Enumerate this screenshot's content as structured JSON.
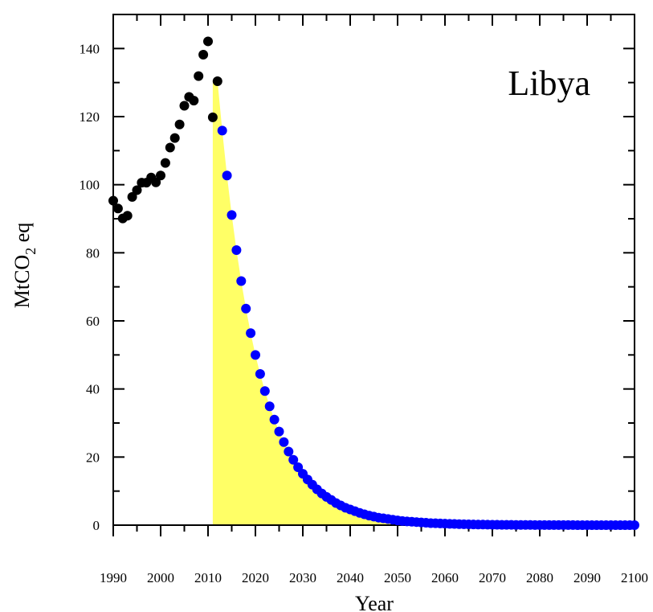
{
  "chart_data": {
    "type": "scatter",
    "annotation": "Libya",
    "xlabel": "Year",
    "ylabel_main": "MtCO",
    "ylabel_sub": "2",
    "ylabel_suffix": " eq",
    "xlim": [
      1990,
      2100
    ],
    "ylim": [
      0,
      150
    ],
    "x_ticks": [
      1990,
      2000,
      2010,
      2020,
      2030,
      2040,
      2050,
      2060,
      2070,
      2080,
      2090,
      2100
    ],
    "y_ticks": [
      0,
      20,
      40,
      60,
      80,
      100,
      120,
      140
    ],
    "grid": false,
    "colors": {
      "historical": "#000000",
      "projection": "#0000ff",
      "fill": "#ffff66"
    },
    "series": [
      {
        "x": [
          1990,
          1991,
          1992,
          1993,
          1994,
          1995,
          1996,
          1997,
          1998,
          1999,
          2000,
          2001,
          2002,
          2003,
          2004,
          2005,
          2006,
          2007,
          2008,
          2009,
          2010,
          2011,
          2012
        ],
        "y": [
          95.3,
          93.0,
          90.1,
          90.9,
          96.4,
          98.4,
          100.6,
          100.6,
          102.1,
          100.7,
          102.7,
          106.4,
          110.9,
          113.7,
          117.7,
          123.2,
          125.8,
          124.7,
          131.9,
          138.2,
          142.1,
          119.8,
          130.4
        ]
      },
      {
        "x": [
          2013,
          2014,
          2015,
          2016,
          2017,
          2018,
          2019,
          2020,
          2021,
          2022,
          2023,
          2024,
          2025,
          2026,
          2027,
          2028,
          2029,
          2030,
          2031,
          2032,
          2033,
          2034,
          2035,
          2036,
          2037,
          2038,
          2039,
          2040,
          2041,
          2042,
          2043,
          2044,
          2045,
          2046,
          2047,
          2048,
          2049,
          2050,
          2051,
          2052,
          2053,
          2054,
          2055,
          2056,
          2057,
          2058,
          2059,
          2060,
          2061,
          2062,
          2063,
          2064,
          2065,
          2066,
          2067,
          2068,
          2069,
          2070,
          2071,
          2072,
          2073,
          2074,
          2075,
          2076,
          2077,
          2078,
          2079,
          2080,
          2081,
          2082,
          2083,
          2084,
          2085,
          2086,
          2087,
          2088,
          2089,
          2090,
          2091,
          2092,
          2093,
          2094,
          2095,
          2096,
          2097,
          2098,
          2099,
          2100
        ],
        "y": [
          115.9,
          102.7,
          91.1,
          80.8,
          71.7,
          63.6,
          56.4,
          50.0,
          44.4,
          39.4,
          34.9,
          31.0,
          27.5,
          24.4,
          21.6,
          19.2,
          17.0,
          15.1,
          13.4,
          11.9,
          10.5,
          9.3,
          8.3,
          7.4,
          6.5,
          5.8,
          5.1,
          4.6,
          4.1,
          3.6,
          3.2,
          2.8,
          2.5,
          2.2,
          2.0,
          1.8,
          1.6,
          1.4,
          1.2,
          1.1,
          1.0,
          0.9,
          0.8,
          0.7,
          0.6,
          0.55,
          0.49,
          0.43,
          0.38,
          0.34,
          0.3,
          0.27,
          0.24,
          0.21,
          0.19,
          0.17,
          0.15,
          0.13,
          0.12,
          0.1,
          0.09,
          0.08,
          0.07,
          0.06,
          0.06,
          0.05,
          0.04,
          0.04,
          0.03,
          0.03,
          0.03,
          0.02,
          0.02,
          0.02,
          0.02,
          0.01,
          0.01,
          0.01,
          0.01,
          0.01,
          0.01,
          0.01,
          0.0,
          0.0,
          0.0,
          0.0,
          0.0,
          0.0
        ]
      }
    ],
    "fill_area": {
      "x": [
        2011,
        2012,
        2013,
        2014,
        2015,
        2016,
        2017,
        2018,
        2019,
        2020,
        2021,
        2022,
        2023,
        2024,
        2025,
        2026,
        2027,
        2028,
        2029,
        2030,
        2031,
        2032,
        2033,
        2034,
        2035,
        2036,
        2037,
        2038,
        2039,
        2040,
        2041,
        2042,
        2043,
        2044,
        2045,
        2046,
        2047,
        2048,
        2049,
        2050,
        2052,
        2055,
        2060
      ],
      "y": [
        130.4,
        130.4,
        115.9,
        102.7,
        91.1,
        80.8,
        71.7,
        63.6,
        56.4,
        50.0,
        44.4,
        39.4,
        34.9,
        31.0,
        27.5,
        24.4,
        21.6,
        19.2,
        17.0,
        15.1,
        13.4,
        11.9,
        10.5,
        9.3,
        8.3,
        7.4,
        6.5,
        5.8,
        5.1,
        4.6,
        4.1,
        3.6,
        3.2,
        2.8,
        2.5,
        2.2,
        2.0,
        1.8,
        1.6,
        1.4,
        1.1,
        0.8,
        0.4
      ]
    }
  }
}
